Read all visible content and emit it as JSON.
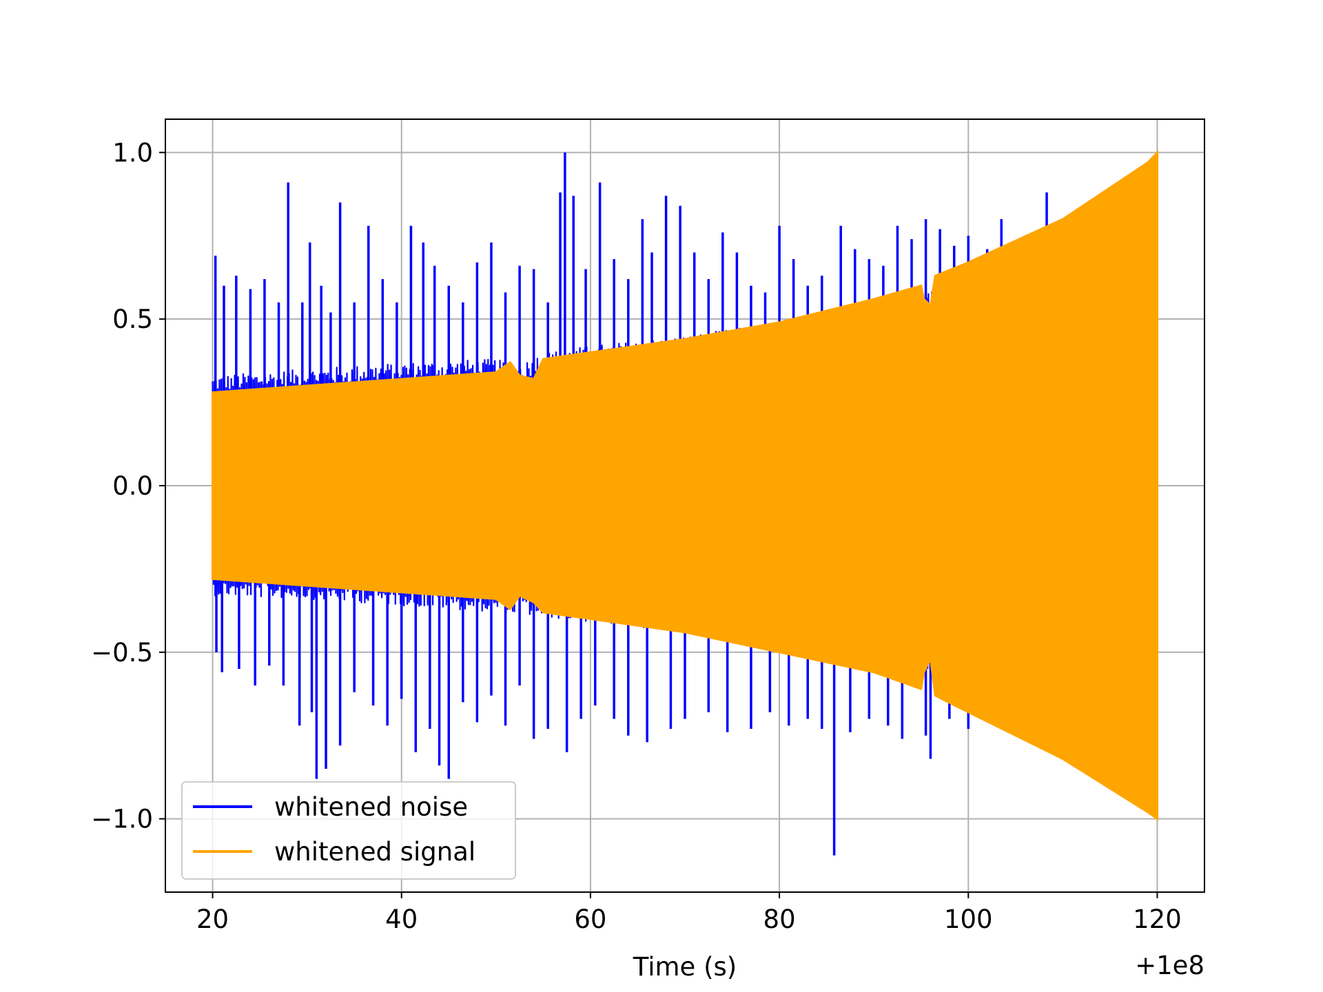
{
  "chart_data": {
    "type": "line",
    "title": "",
    "xlabel": "Time (s)",
    "ylabel": "",
    "x_offset_label": "+1e8",
    "xlim": [
      15,
      125
    ],
    "ylim": [
      -1.22,
      1.1
    ],
    "x_ticks": [
      20,
      40,
      60,
      80,
      100,
      120
    ],
    "x_tick_labels": [
      "20",
      "40",
      "60",
      "80",
      "100",
      "120"
    ],
    "y_ticks": [
      1.0,
      0.5,
      0.0,
      -0.5,
      -1.0
    ],
    "y_tick_labels": [
      "1.0",
      "0.5",
      "0.0",
      "−0.5",
      "−1.0"
    ],
    "grid": true,
    "legend_position": "lower-left",
    "series": [
      {
        "name": "whitened noise",
        "color": "#0000ff",
        "x_start": 20,
        "x_end": 120,
        "upper_envelope": {
          "x": [
            20,
            30,
            40,
            50,
            52,
            55,
            60,
            70,
            80,
            90,
            95,
            96,
            100,
            110,
            120
          ],
          "y": [
            0.33,
            0.35,
            0.37,
            0.38,
            0.36,
            0.4,
            0.42,
            0.45,
            0.49,
            0.5,
            0.52,
            0.6,
            0.65,
            0.78,
            0.95
          ]
        },
        "lower_envelope": {
          "x": [
            20,
            30,
            40,
            50,
            60,
            70,
            80,
            90,
            95,
            96,
            100,
            110,
            120
          ],
          "y": [
            -0.33,
            -0.34,
            -0.36,
            -0.38,
            -0.41,
            -0.44,
            -0.47,
            -0.55,
            -0.6,
            -0.55,
            -0.68,
            -0.82,
            -0.95
          ]
        },
        "spikes": [
          {
            "x": 20.3,
            "y": 0.69
          },
          {
            "x": 21.2,
            "y": 0.6
          },
          {
            "x": 22.5,
            "y": 0.63
          },
          {
            "x": 24.0,
            "y": 0.59
          },
          {
            "x": 25.5,
            "y": 0.62
          },
          {
            "x": 27.0,
            "y": 0.55
          },
          {
            "x": 28.0,
            "y": 0.91
          },
          {
            "x": 29.5,
            "y": 0.55
          },
          {
            "x": 30.3,
            "y": 0.73
          },
          {
            "x": 31.5,
            "y": 0.6
          },
          {
            "x": 32.5,
            "y": 0.52
          },
          {
            "x": 33.5,
            "y": 0.85
          },
          {
            "x": 35.0,
            "y": 0.55
          },
          {
            "x": 36.5,
            "y": 0.78
          },
          {
            "x": 38.0,
            "y": 0.62
          },
          {
            "x": 39.5,
            "y": 0.55
          },
          {
            "x": 41.0,
            "y": 0.78
          },
          {
            "x": 42.3,
            "y": 0.73
          },
          {
            "x": 43.5,
            "y": 0.66
          },
          {
            "x": 45.0,
            "y": 0.6
          },
          {
            "x": 46.5,
            "y": 0.55
          },
          {
            "x": 48.0,
            "y": 0.67
          },
          {
            "x": 49.5,
            "y": 0.73
          },
          {
            "x": 51.0,
            "y": 0.58
          },
          {
            "x": 52.5,
            "y": 0.66
          },
          {
            "x": 54.0,
            "y": 0.65
          },
          {
            "x": 55.5,
            "y": 0.55
          },
          {
            "x": 56.8,
            "y": 0.88
          },
          {
            "x": 57.3,
            "y": 1.0
          },
          {
            "x": 58.2,
            "y": 0.87
          },
          {
            "x": 59.5,
            "y": 0.65
          },
          {
            "x": 61.0,
            "y": 0.91
          },
          {
            "x": 62.5,
            "y": 0.68
          },
          {
            "x": 64.0,
            "y": 0.62
          },
          {
            "x": 65.5,
            "y": 0.8
          },
          {
            "x": 66.5,
            "y": 0.7
          },
          {
            "x": 68.0,
            "y": 0.87
          },
          {
            "x": 69.5,
            "y": 0.84
          },
          {
            "x": 71.0,
            "y": 0.7
          },
          {
            "x": 72.5,
            "y": 0.62
          },
          {
            "x": 74.0,
            "y": 0.76
          },
          {
            "x": 75.5,
            "y": 0.7
          },
          {
            "x": 77.0,
            "y": 0.6
          },
          {
            "x": 78.5,
            "y": 0.58
          },
          {
            "x": 80.0,
            "y": 0.78
          },
          {
            "x": 81.5,
            "y": 0.68
          },
          {
            "x": 83.0,
            "y": 0.6
          },
          {
            "x": 84.5,
            "y": 0.63
          },
          {
            "x": 86.5,
            "y": 0.78
          },
          {
            "x": 88.0,
            "y": 0.71
          },
          {
            "x": 89.5,
            "y": 0.68
          },
          {
            "x": 91.0,
            "y": 0.66
          },
          {
            "x": 92.5,
            "y": 0.78
          },
          {
            "x": 94.0,
            "y": 0.74
          },
          {
            "x": 95.5,
            "y": 0.8
          },
          {
            "x": 97.0,
            "y": 0.77
          },
          {
            "x": 98.5,
            "y": 0.72
          },
          {
            "x": 100.0,
            "y": 0.75
          },
          {
            "x": 102.0,
            "y": 0.71
          },
          {
            "x": 103.5,
            "y": 0.8
          },
          {
            "x": 106.0,
            "y": 0.73
          },
          {
            "x": 108.3,
            "y": 0.88
          },
          {
            "x": 20.4,
            "y": -0.5
          },
          {
            "x": 21.0,
            "y": -0.56
          },
          {
            "x": 22.8,
            "y": -0.55
          },
          {
            "x": 24.5,
            "y": -0.6
          },
          {
            "x": 26.0,
            "y": -0.54
          },
          {
            "x": 27.5,
            "y": -0.6
          },
          {
            "x": 29.2,
            "y": -0.72
          },
          {
            "x": 30.5,
            "y": -0.68
          },
          {
            "x": 31.0,
            "y": -0.88
          },
          {
            "x": 32.0,
            "y": -0.85
          },
          {
            "x": 33.5,
            "y": -0.78
          },
          {
            "x": 35.0,
            "y": -0.62
          },
          {
            "x": 37.0,
            "y": -0.66
          },
          {
            "x": 38.5,
            "y": -0.72
          },
          {
            "x": 40.0,
            "y": -0.64
          },
          {
            "x": 41.5,
            "y": -0.8
          },
          {
            "x": 43.0,
            "y": -0.73
          },
          {
            "x": 44.0,
            "y": -0.84
          },
          {
            "x": 45.0,
            "y": -0.88
          },
          {
            "x": 46.5,
            "y": -0.65
          },
          {
            "x": 48.0,
            "y": -0.71
          },
          {
            "x": 49.5,
            "y": -0.63
          },
          {
            "x": 51.0,
            "y": -0.72
          },
          {
            "x": 52.5,
            "y": -0.6
          },
          {
            "x": 54.0,
            "y": -0.76
          },
          {
            "x": 55.5,
            "y": -0.73
          },
          {
            "x": 57.5,
            "y": -0.8
          },
          {
            "x": 59.0,
            "y": -0.7
          },
          {
            "x": 60.5,
            "y": -0.66
          },
          {
            "x": 62.5,
            "y": -0.7
          },
          {
            "x": 64.0,
            "y": -0.75
          },
          {
            "x": 66.0,
            "y": -0.77
          },
          {
            "x": 68.5,
            "y": -0.73
          },
          {
            "x": 70.0,
            "y": -0.7
          },
          {
            "x": 72.5,
            "y": -0.68
          },
          {
            "x": 74.5,
            "y": -0.74
          },
          {
            "x": 77.0,
            "y": -0.73
          },
          {
            "x": 79.0,
            "y": -0.68
          },
          {
            "x": 81.0,
            "y": -0.72
          },
          {
            "x": 83.0,
            "y": -0.7
          },
          {
            "x": 84.5,
            "y": -0.73
          },
          {
            "x": 85.8,
            "y": -1.11
          },
          {
            "x": 87.5,
            "y": -0.74
          },
          {
            "x": 89.5,
            "y": -0.7
          },
          {
            "x": 91.5,
            "y": -0.72
          },
          {
            "x": 93.0,
            "y": -0.76
          },
          {
            "x": 95.5,
            "y": -0.75
          },
          {
            "x": 96.0,
            "y": -0.82
          },
          {
            "x": 98.0,
            "y": -0.7
          },
          {
            "x": 100.0,
            "y": -0.73
          }
        ]
      },
      {
        "name": "whitened signal",
        "color": "#ffa500",
        "x_start": 20,
        "x_end": 120,
        "upper_envelope": {
          "x": [
            20,
            30,
            40,
            50,
            51.5,
            52.5,
            54,
            55,
            60,
            70,
            80,
            90,
            95,
            95.3,
            96,
            96.5,
            100,
            110,
            119,
            120
          ],
          "y": [
            0.28,
            0.3,
            0.32,
            0.34,
            0.37,
            0.33,
            0.32,
            0.38,
            0.4,
            0.44,
            0.49,
            0.56,
            0.6,
            0.56,
            0.54,
            0.63,
            0.67,
            0.8,
            0.97,
            1.0
          ]
        },
        "lower_envelope": {
          "x": [
            20,
            30,
            40,
            50,
            51.5,
            52.5,
            54,
            55,
            60,
            70,
            80,
            90,
            95,
            95.3,
            96,
            96.5,
            100,
            110,
            119,
            120
          ],
          "y": [
            -0.28,
            -0.3,
            -0.32,
            -0.34,
            -0.37,
            -0.33,
            -0.35,
            -0.38,
            -0.4,
            -0.44,
            -0.5,
            -0.56,
            -0.61,
            -0.56,
            -0.52,
            -0.63,
            -0.68,
            -0.82,
            -0.98,
            -1.0
          ]
        }
      }
    ]
  }
}
